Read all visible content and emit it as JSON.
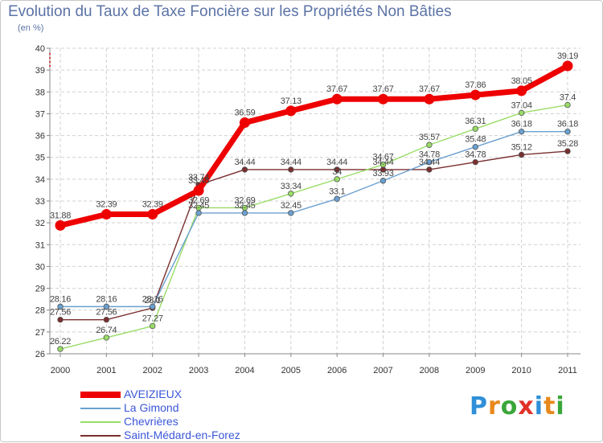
{
  "title": "Evolution du Taux de Taxe Foncière sur les Propriétés Non Bâties",
  "unit_label": "(en %)",
  "brand": {
    "name": "Proxiti",
    "letters": [
      "P",
      "r",
      "o",
      "x",
      "i",
      "t",
      "i"
    ],
    "colors": [
      "#2f8fd8",
      "#e8881c",
      "#3aa63a",
      "#e0322a",
      "#2f8fd8",
      "#e8881c",
      "#3aa63a"
    ]
  },
  "chart_data": {
    "type": "line",
    "title": "Evolution du Taux de Taxe Foncière sur les Propriétés Non Bâties",
    "ylabel": "(en %)",
    "xlabel": "",
    "x": [
      "2000",
      "2001",
      "2002",
      "2003",
      "2004",
      "2005",
      "2006",
      "2007",
      "2008",
      "2009",
      "2010",
      "2011"
    ],
    "ylim": [
      26,
      40
    ],
    "yticks": [
      "26",
      "27",
      "28",
      "29",
      "30",
      "31",
      "32",
      "33",
      "34",
      "35",
      "36",
      "37",
      "38",
      "39",
      "40"
    ],
    "grid": true,
    "legend_position": "bottom-left",
    "series": [
      {
        "name": "AVEIZIEUX",
        "color": "#ee0000",
        "values": [
          31.88,
          32.39,
          32.39,
          33.48,
          36.59,
          37.13,
          37.67,
          37.67,
          37.67,
          37.86,
          38.05,
          39.19
        ],
        "labels": [
          "31.88",
          "32.39",
          "32.39",
          "33.48",
          "36.59",
          "37.13",
          "37.67",
          "37.67",
          "37.67",
          "37.86",
          "38.05",
          "39.19"
        ]
      },
      {
        "name": "La Gimond",
        "color": "#6aa0d0",
        "values": [
          28.16,
          28.16,
          28.16,
          32.45,
          32.45,
          32.45,
          33.1,
          33.93,
          34.78,
          35.48,
          36.18,
          36.18
        ],
        "labels": [
          "28.16",
          "28.16",
          "28.16",
          "32.45",
          "32.45",
          "32.45",
          "33.1",
          "33.93",
          "34.78",
          "35.48",
          "36.18",
          "36.18"
        ]
      },
      {
        "name": "Chevrières",
        "color": "#99dd66",
        "values": [
          26.22,
          26.74,
          27.27,
          32.69,
          32.69,
          33.34,
          34.0,
          34.67,
          35.57,
          36.31,
          37.04,
          37.4
        ],
        "labels": [
          "26.22",
          "26.74",
          "27.27",
          "32.69",
          "32.69",
          "33.34",
          "34",
          "34.67",
          "35.57",
          "36.31",
          "37.04",
          "37.4"
        ]
      },
      {
        "name": "Saint-Médard-en-Forez",
        "color": "#7a2e2e",
        "values": [
          27.56,
          27.56,
          28.1,
          33.74,
          34.44,
          34.44,
          34.44,
          34.44,
          34.44,
          34.78,
          35.12,
          35.28
        ],
        "labels": [
          "27.56",
          "27.56",
          "28.1",
          "33.74",
          "34.44",
          "34.44",
          "34.44",
          "34.44",
          "34.44",
          "34.78",
          "35.12",
          "35.28"
        ]
      }
    ]
  }
}
